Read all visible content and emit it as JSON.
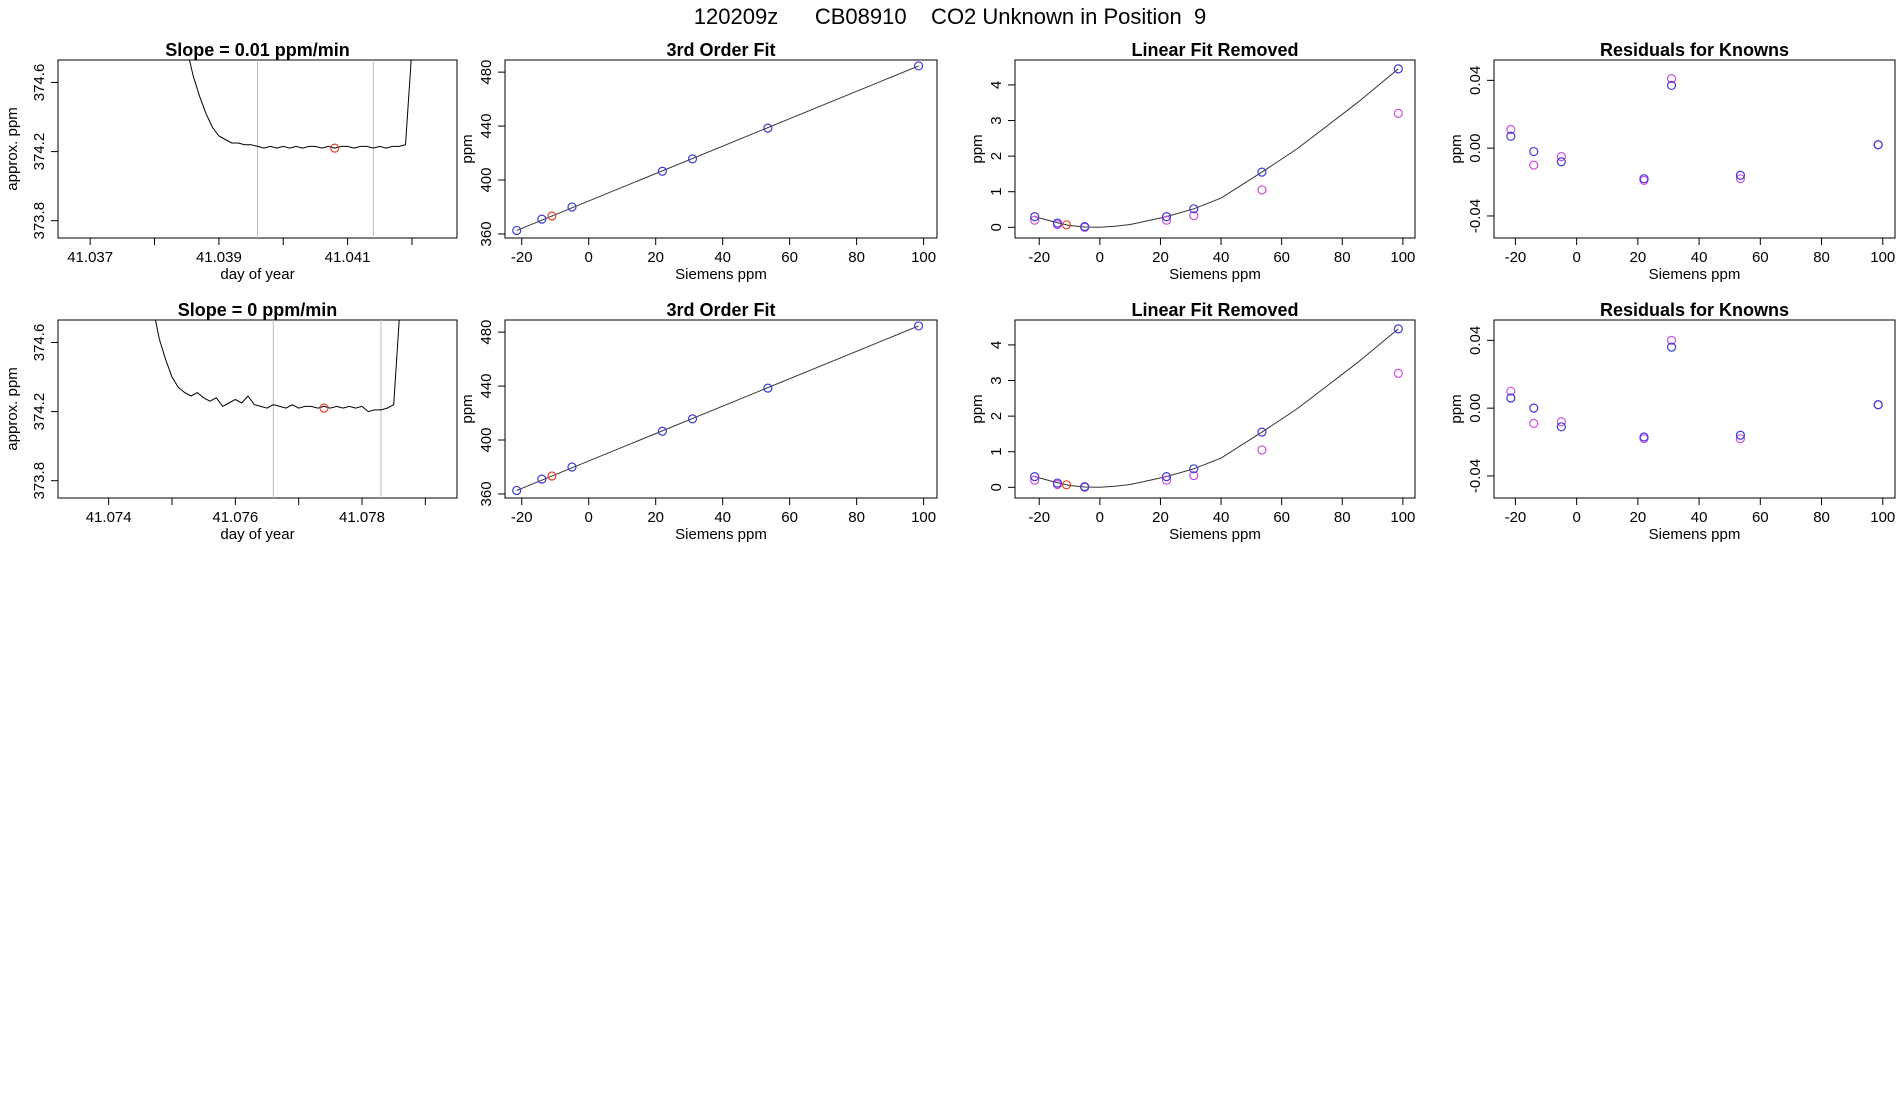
{
  "title": "120209z      CB08910    CO2 Unknown in Position  9",
  "colors": {
    "known": "#3b3bd9",
    "residual_alt": "#d04ee0",
    "unknown": "#e8402c",
    "line": "#000000"
  },
  "chart_data": [
    {
      "type": "line",
      "id": "r1-timeseries",
      "title": "Slope =  0.01  ppm/min",
      "xlabel": "day of year",
      "ylabel": "approx. ppm",
      "xlim": [
        41.0365,
        41.0427
      ],
      "ylim": [
        373.7,
        374.73
      ],
      "xticks": [
        41.037,
        41.039,
        41.041
      ],
      "xtick_labels": [
        "41.037",
        "41.039",
        "41.041"
      ],
      "xticks_minor": [
        41.038,
        41.04,
        41.042
      ],
      "yticks": [
        373.8,
        374.2,
        374.6
      ],
      "ytick_labels": [
        "373.8",
        "374.2",
        "374.6"
      ],
      "vlines": [
        41.0396,
        41.0414
      ],
      "unknown_point": [
        41.0408,
        374.22
      ],
      "trace": [
        [
          41.0385,
          374.8
        ],
        [
          41.0386,
          374.64
        ],
        [
          41.0387,
          374.52
        ],
        [
          41.0388,
          374.42
        ],
        [
          41.0389,
          374.34
        ],
        [
          41.039,
          374.29
        ],
        [
          41.0391,
          374.27
        ],
        [
          41.0392,
          374.25
        ],
        [
          41.0393,
          374.25
        ],
        [
          41.0394,
          374.24
        ],
        [
          41.0395,
          374.24
        ],
        [
          41.0396,
          374.23
        ],
        [
          41.0397,
          374.22
        ],
        [
          41.0398,
          374.23
        ],
        [
          41.0399,
          374.22
        ],
        [
          41.04,
          374.23
        ],
        [
          41.0401,
          374.22
        ],
        [
          41.0402,
          374.23
        ],
        [
          41.0403,
          374.22
        ],
        [
          41.0404,
          374.23
        ],
        [
          41.0405,
          374.23
        ],
        [
          41.0406,
          374.22
        ],
        [
          41.0407,
          374.23
        ],
        [
          41.0408,
          374.22
        ],
        [
          41.0409,
          374.23
        ],
        [
          41.041,
          374.23
        ],
        [
          41.0411,
          374.22
        ],
        [
          41.0412,
          374.23
        ],
        [
          41.0413,
          374.23
        ],
        [
          41.0414,
          374.22
        ],
        [
          41.0415,
          374.23
        ],
        [
          41.0416,
          374.22
        ],
        [
          41.0417,
          374.23
        ],
        [
          41.0418,
          374.23
        ],
        [
          41.0419,
          374.24
        ],
        [
          41.042,
          374.8
        ]
      ]
    },
    {
      "type": "scatter",
      "id": "r1-fit",
      "title": "3rd Order Fit",
      "xlabel": "Siemens ppm",
      "ylabel": "ppm",
      "xlim": [
        -25,
        104
      ],
      "ylim": [
        357,
        489
      ],
      "xticks": [
        -20,
        0,
        20,
        40,
        60,
        80,
        100
      ],
      "xtick_labels": [
        "-20",
        "0",
        "20",
        "40",
        "60",
        "80",
        "100"
      ],
      "yticks": [
        360,
        400,
        440,
        480
      ],
      "ytick_labels": [
        "360",
        "400",
        "440",
        "480"
      ],
      "line": [
        [
          -21.5,
          362.6
        ],
        [
          98.5,
          484.6
        ]
      ],
      "knowns": [
        [
          -21.5,
          362.6
        ],
        [
          -14,
          371
        ],
        [
          -5,
          380
        ],
        [
          22,
          406.5
        ],
        [
          31,
          415.7
        ],
        [
          53.5,
          438.5
        ],
        [
          98.5,
          484.6
        ]
      ],
      "unknowns": [
        [
          -11,
          373.3
        ]
      ]
    },
    {
      "type": "scatter",
      "id": "r1-linear",
      "title": "Linear Fit Removed",
      "xlabel": "Siemens ppm",
      "ylabel": "ppm",
      "xlim": [
        -28,
        104
      ],
      "ylim": [
        -0.3,
        4.7
      ],
      "xticks": [
        -20,
        0,
        20,
        40,
        60,
        80,
        100
      ],
      "xtick_labels": [
        "-20",
        "0",
        "20",
        "40",
        "60",
        "80",
        "100"
      ],
      "yticks": [
        0,
        1,
        2,
        3,
        4
      ],
      "ytick_labels": [
        "0",
        "1",
        "2",
        "3",
        "4"
      ],
      "curve": [
        [
          -21.5,
          0.3
        ],
        [
          -15,
          0.15
        ],
        [
          -10,
          0.05
        ],
        [
          -5,
          0.01
        ],
        [
          0,
          0
        ],
        [
          5,
          0.03
        ],
        [
          10,
          0.08
        ],
        [
          15,
          0.17
        ],
        [
          22,
          0.3
        ],
        [
          31,
          0.52
        ],
        [
          40,
          0.82
        ],
        [
          53.5,
          1.55
        ],
        [
          65,
          2.2
        ],
        [
          75,
          2.85
        ],
        [
          85,
          3.5
        ],
        [
          98.5,
          4.45
        ]
      ],
      "knowns": [
        [
          -21.5,
          0.3
        ],
        [
          -14,
          0.12
        ],
        [
          -5,
          0.02
        ],
        [
          22,
          0.3
        ],
        [
          31,
          0.52
        ],
        [
          53.5,
          1.55
        ],
        [
          98.5,
          4.45
        ]
      ],
      "alt": [
        [
          -21.5,
          0.2
        ],
        [
          -14,
          0.08
        ],
        [
          -5,
          0.0
        ],
        [
          22,
          0.2
        ],
        [
          31,
          0.33
        ],
        [
          53.5,
          1.05
        ],
        [
          98.5,
          3.2
        ]
      ],
      "unknowns": [
        [
          -11,
          0.07
        ]
      ]
    },
    {
      "type": "scatter",
      "id": "r1-resid",
      "title": "Residuals for Knowns",
      "xlabel": "Siemens ppm",
      "ylabel": "ppm",
      "xlim": [
        -27,
        104
      ],
      "ylim": [
        -0.053,
        0.052
      ],
      "xticks": [
        -20,
        0,
        20,
        40,
        60,
        80,
        100
      ],
      "xtick_labels": [
        "-20",
        "0",
        "20",
        "40",
        "60",
        "80",
        "100"
      ],
      "yticks": [
        -0.04,
        0.0,
        0.04
      ],
      "ytick_labels": [
        "-0.04",
        "0.00",
        "0.04"
      ],
      "knowns": [
        [
          -21.5,
          0.007
        ],
        [
          -14,
          -0.002
        ],
        [
          -5,
          -0.008
        ],
        [
          22,
          -0.018
        ],
        [
          31,
          0.037
        ],
        [
          53.5,
          -0.016
        ],
        [
          98.5,
          0.002
        ]
      ],
      "alt": [
        [
          -21.5,
          0.011
        ],
        [
          -14,
          -0.01
        ],
        [
          -5,
          -0.005
        ],
        [
          22,
          -0.019
        ],
        [
          31,
          0.041
        ],
        [
          53.5,
          -0.018
        ],
        [
          98.5,
          0.002
        ]
      ]
    },
    {
      "type": "line",
      "id": "r2-timeseries",
      "title": "Slope =  0  ppm/min",
      "xlabel": "day of year",
      "ylabel": "approx. ppm",
      "xlim": [
        41.0732,
        41.0795
      ],
      "ylim": [
        373.7,
        374.73
      ],
      "xticks": [
        41.074,
        41.076,
        41.078
      ],
      "xtick_labels": [
        "41.074",
        "41.076",
        "41.078"
      ],
      "xticks_minor": [
        41.075,
        41.077,
        41.079
      ],
      "yticks": [
        373.8,
        374.2,
        374.6
      ],
      "ytick_labels": [
        "373.8",
        "374.2",
        "374.6"
      ],
      "vlines": [
        41.0766,
        41.0783
      ],
      "unknown_point": [
        41.0774,
        374.22
      ],
      "trace": [
        [
          41.0747,
          374.8
        ],
        [
          41.0748,
          374.62
        ],
        [
          41.0749,
          374.5
        ],
        [
          41.075,
          374.4
        ],
        [
          41.0751,
          374.34
        ],
        [
          41.0752,
          374.31
        ],
        [
          41.0753,
          374.29
        ],
        [
          41.0754,
          374.31
        ],
        [
          41.0755,
          374.28
        ],
        [
          41.0756,
          374.26
        ],
        [
          41.0757,
          374.28
        ],
        [
          41.0758,
          374.23
        ],
        [
          41.0759,
          374.25
        ],
        [
          41.076,
          374.27
        ],
        [
          41.0761,
          374.25
        ],
        [
          41.0762,
          374.29
        ],
        [
          41.0763,
          374.24
        ],
        [
          41.0764,
          374.23
        ],
        [
          41.0765,
          374.22
        ],
        [
          41.0766,
          374.24
        ],
        [
          41.0767,
          374.23
        ],
        [
          41.0768,
          374.22
        ],
        [
          41.0769,
          374.24
        ],
        [
          41.077,
          374.22
        ],
        [
          41.0771,
          374.23
        ],
        [
          41.0772,
          374.23
        ],
        [
          41.0773,
          374.22
        ],
        [
          41.0774,
          374.23
        ],
        [
          41.0775,
          374.22
        ],
        [
          41.0776,
          374.23
        ],
        [
          41.0777,
          374.22
        ],
        [
          41.0778,
          374.23
        ],
        [
          41.0779,
          374.22
        ],
        [
          41.078,
          374.23
        ],
        [
          41.0781,
          374.2
        ],
        [
          41.0782,
          374.21
        ],
        [
          41.0783,
          374.21
        ],
        [
          41.0784,
          374.22
        ],
        [
          41.0785,
          374.24
        ],
        [
          41.0786,
          374.8
        ]
      ]
    },
    {
      "type": "scatter",
      "id": "r2-fit",
      "title": "3rd Order Fit",
      "xlabel": "Siemens ppm",
      "ylabel": "ppm",
      "xlim": [
        -25,
        104
      ],
      "ylim": [
        357,
        489
      ],
      "xticks": [
        -20,
        0,
        20,
        40,
        60,
        80,
        100
      ],
      "xtick_labels": [
        "-20",
        "0",
        "20",
        "40",
        "60",
        "80",
        "100"
      ],
      "yticks": [
        360,
        400,
        440,
        480
      ],
      "ytick_labels": [
        "360",
        "400",
        "440",
        "480"
      ],
      "line": [
        [
          -21.5,
          362.6
        ],
        [
          98.5,
          484.6
        ]
      ],
      "knowns": [
        [
          -21.5,
          362.6
        ],
        [
          -14,
          371
        ],
        [
          -5,
          380
        ],
        [
          22,
          406.5
        ],
        [
          31,
          415.7
        ],
        [
          53.5,
          438.5
        ],
        [
          98.5,
          484.6
        ]
      ],
      "unknowns": [
        [
          -11,
          373.3
        ]
      ]
    },
    {
      "type": "scatter",
      "id": "r2-linear",
      "title": "Linear Fit Removed",
      "xlabel": "Siemens ppm",
      "ylabel": "ppm",
      "xlim": [
        -28,
        104
      ],
      "ylim": [
        -0.3,
        4.7
      ],
      "xticks": [
        -20,
        0,
        20,
        40,
        60,
        80,
        100
      ],
      "xtick_labels": [
        "-20",
        "0",
        "20",
        "40",
        "60",
        "80",
        "100"
      ],
      "yticks": [
        0,
        1,
        2,
        3,
        4
      ],
      "ytick_labels": [
        "0",
        "1",
        "2",
        "3",
        "4"
      ],
      "curve": [
        [
          -21.5,
          0.3
        ],
        [
          -15,
          0.15
        ],
        [
          -10,
          0.05
        ],
        [
          -5,
          0.01
        ],
        [
          0,
          0
        ],
        [
          5,
          0.03
        ],
        [
          10,
          0.08
        ],
        [
          15,
          0.17
        ],
        [
          22,
          0.3
        ],
        [
          31,
          0.52
        ],
        [
          40,
          0.82
        ],
        [
          53.5,
          1.55
        ],
        [
          65,
          2.2
        ],
        [
          75,
          2.85
        ],
        [
          85,
          3.5
        ],
        [
          98.5,
          4.45
        ]
      ],
      "knowns": [
        [
          -21.5,
          0.3
        ],
        [
          -14,
          0.12
        ],
        [
          -5,
          0.02
        ],
        [
          22,
          0.3
        ],
        [
          31,
          0.52
        ],
        [
          53.5,
          1.55
        ],
        [
          98.5,
          4.45
        ]
      ],
      "alt": [
        [
          -21.5,
          0.2
        ],
        [
          -14,
          0.08
        ],
        [
          -5,
          0.0
        ],
        [
          22,
          0.2
        ],
        [
          31,
          0.33
        ],
        [
          53.5,
          1.05
        ],
        [
          98.5,
          3.2
        ]
      ],
      "unknowns": [
        [
          -11,
          0.07
        ]
      ]
    },
    {
      "type": "scatter",
      "id": "r2-resid",
      "title": "Residuals for Knowns",
      "xlabel": "Siemens ppm",
      "ylabel": "ppm",
      "xlim": [
        -27,
        104
      ],
      "ylim": [
        -0.053,
        0.052
      ],
      "xticks": [
        -20,
        0,
        20,
        40,
        60,
        80,
        100
      ],
      "xtick_labels": [
        "-20",
        "0",
        "20",
        "40",
        "60",
        "80",
        "100"
      ],
      "yticks": [
        -0.04,
        0.0,
        0.04
      ],
      "ytick_labels": [
        "-0.04",
        "0.00",
        "0.04"
      ],
      "knowns": [
        [
          -21.5,
          0.006
        ],
        [
          -14,
          0.0
        ],
        [
          -5,
          -0.011
        ],
        [
          22,
          -0.017
        ],
        [
          31,
          0.036
        ],
        [
          53.5,
          -0.016
        ],
        [
          98.5,
          0.002
        ]
      ],
      "alt": [
        [
          -21.5,
          0.01
        ],
        [
          -14,
          -0.009
        ],
        [
          -5,
          -0.008
        ],
        [
          22,
          -0.018
        ],
        [
          31,
          0.04
        ],
        [
          53.5,
          -0.018
        ],
        [
          98.5,
          0.002
        ]
      ]
    }
  ]
}
